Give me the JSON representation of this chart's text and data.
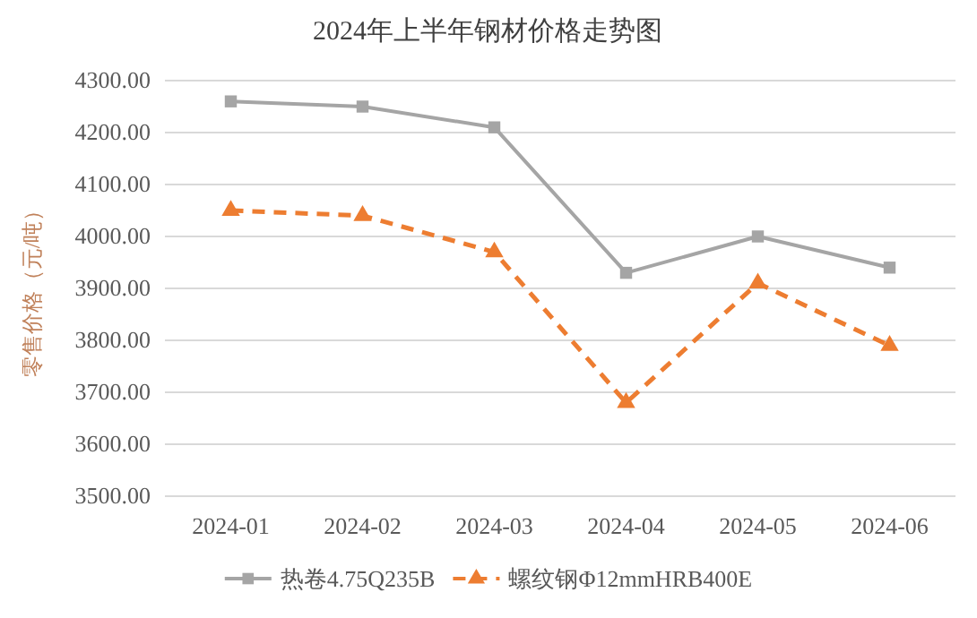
{
  "chart_data": {
    "type": "line",
    "title": "2024年上半年钢材价格走势图",
    "ylabel": "零售价格（元/吨）",
    "categories": [
      "2024-01",
      "2024-02",
      "2024-03",
      "2024-04",
      "2024-05",
      "2024-06"
    ],
    "series": [
      {
        "name": "热卷4.75Q235B",
        "color": "#a5a5a5",
        "values": [
          4260,
          4250,
          4210,
          3930,
          4000,
          3940
        ],
        "marker": "square",
        "line_style": "solid"
      },
      {
        "name": "螺纹钢Φ12mmHRB400E",
        "color": "#ed7d31",
        "values": [
          4050,
          4040,
          3970,
          3680,
          3910,
          3790
        ],
        "marker": "triangle",
        "line_style": "dashed"
      }
    ],
    "ylim": [
      3500,
      4300
    ],
    "yticks": [
      {
        "value": 3500,
        "label": "3500.00"
      },
      {
        "value": 3600,
        "label": "3600.00"
      },
      {
        "value": 3700,
        "label": "3700.00"
      },
      {
        "value": 3800,
        "label": "3800.00"
      },
      {
        "value": 3900,
        "label": "3900.00"
      },
      {
        "value": 4000,
        "label": "4000.00"
      },
      {
        "value": 4100,
        "label": "4100.00"
      },
      {
        "value": 4200,
        "label": "4200.00"
      },
      {
        "value": 4300,
        "label": "4300.00"
      }
    ],
    "grid": "y",
    "legend": "bottom"
  }
}
